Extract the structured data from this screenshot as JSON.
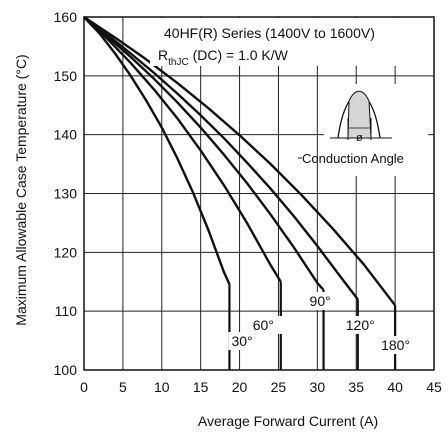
{
  "chart_data": {
    "type": "line",
    "ylabel": "Maximum Allowable Case Temperature (°C)",
    "xlabel": "Average Forward Current (A)",
    "xlim": [
      0,
      45
    ],
    "ylim": [
      100,
      160
    ],
    "x_ticks": [
      "0",
      "5",
      "10",
      "15",
      "20",
      "25",
      "30",
      "35",
      "40",
      "45"
    ],
    "y_ticks": [
      "160",
      "150",
      "140",
      "130",
      "120",
      "110",
      "100"
    ],
    "grid": true,
    "annotations": {
      "series_line": "40HF(R) Series (1400V to 1600V)",
      "rth_prefix": "R",
      "rth_sub": "thJC",
      "rth_suffix": " (DC) = 1.0 K/W",
      "phi": "ø",
      "conduction_angle": "Conduction Angle"
    },
    "series": [
      {
        "label": "30°",
        "x": [
          0,
          2,
          4,
          6,
          8,
          10,
          12,
          14,
          16,
          18,
          18.7
        ],
        "y": [
          160,
          157.2,
          153.8,
          150.0,
          145.8,
          141.2,
          136.0,
          130.2,
          123.8,
          116.6,
          114.6
        ],
        "drop_x": 18.7
      },
      {
        "label": "60°",
        "x": [
          0,
          3,
          6,
          9,
          12,
          15,
          18,
          21,
          24,
          25.3
        ],
        "y": [
          160,
          156.3,
          152.2,
          147.7,
          142.8,
          137.3,
          131.4,
          124.9,
          117.8,
          115.0
        ],
        "drop_x": 25.3
      },
      {
        "label": "90°",
        "x": [
          0,
          3,
          6,
          9,
          12,
          15,
          18,
          21,
          24,
          27,
          30,
          30.8
        ],
        "y": [
          160,
          156.7,
          153.2,
          149.5,
          145.5,
          141.2,
          136.6,
          131.7,
          126.4,
          120.8,
          114.8,
          113.6
        ],
        "drop_x": 30.8
      },
      {
        "label": "120°",
        "x": [
          0,
          3,
          6,
          9,
          12,
          15,
          18,
          21,
          24,
          27,
          30,
          33,
          35.2
        ],
        "y": [
          160,
          157.0,
          153.8,
          150.5,
          147.0,
          143.3,
          139.4,
          135.2,
          130.8,
          126.1,
          121.1,
          115.8,
          112.0
        ],
        "drop_x": 35.2
      },
      {
        "label": "180°",
        "x": [
          0,
          4,
          8,
          12,
          16,
          20,
          24,
          28,
          32,
          36,
          40
        ],
        "y": [
          160,
          156.5,
          152.8,
          148.8,
          144.5,
          139.9,
          135.0,
          129.7,
          124.0,
          117.9,
          111.0
        ],
        "drop_x": 40
      }
    ]
  }
}
